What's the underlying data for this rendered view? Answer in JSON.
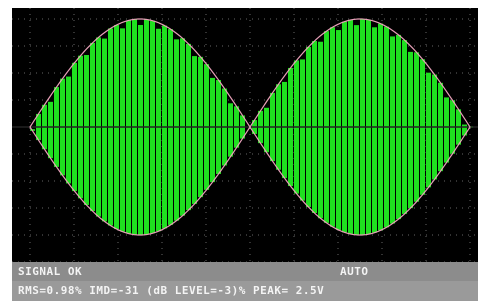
{
  "status": {
    "left": "SIGNAL OK",
    "right": "AUTO"
  },
  "readout": "RMS=0.98% IMD=-31 (dB LEVEL=-3)% PEAK= 2.5V"
}
